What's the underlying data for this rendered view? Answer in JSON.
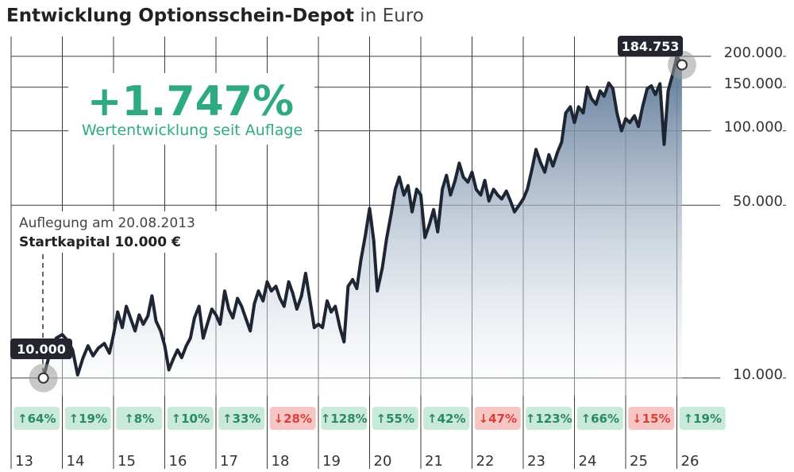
{
  "title": {
    "bold": "Entwicklung Optionsschein-Depot",
    "rest": " in Euro"
  },
  "colors": {
    "grid": "#3a3a3a",
    "line": "#1e2533",
    "area_top": "#5a7696",
    "area_bottom": "#ffffff",
    "green": "#2eab7e",
    "up_bg": "#c9e9da",
    "up_fg": "#2a8a63",
    "down_bg": "#f7c6c4",
    "down_fg": "#d9413c",
    "callout_bg": "#23262f"
  },
  "headline": {
    "value": "+1.747%",
    "label": "Wertentwicklung seit Auflage"
  },
  "launch": {
    "line1": "Auflegung am 20.08.2013",
    "line2": "Startkapital 10.000 €"
  },
  "callouts": {
    "start": "10.000",
    "end": "184.753"
  },
  "chart_data": {
    "type": "line",
    "scale": "log",
    "ylim": [
      9000,
      230000
    ],
    "x_range": [
      2013,
      2026.68
    ],
    "y_ticks": [
      {
        "value": 10000,
        "label": "10.000"
      },
      {
        "value": 50000,
        "label": "50.000"
      },
      {
        "value": 100000,
        "label": "100.000"
      },
      {
        "value": 150000,
        "label": "150.000"
      },
      {
        "value": 200000,
        "label": "200.000"
      }
    ],
    "x_ticks": [
      "13",
      "14",
      "15",
      "16",
      "17",
      "18",
      "19",
      "20",
      "21",
      "22",
      "23",
      "24",
      "25",
      "26"
    ],
    "yearly_returns": [
      {
        "year": "13",
        "value": "64",
        "dir": "up"
      },
      {
        "year": "14",
        "value": "19",
        "dir": "up"
      },
      {
        "year": "15",
        "value": "8",
        "dir": "up"
      },
      {
        "year": "16",
        "value": "10",
        "dir": "up"
      },
      {
        "year": "17",
        "value": "33",
        "dir": "up"
      },
      {
        "year": "18",
        "value": "28",
        "dir": "down"
      },
      {
        "year": "19",
        "value": "128",
        "dir": "up"
      },
      {
        "year": "20",
        "value": "55",
        "dir": "up"
      },
      {
        "year": "21",
        "value": "42",
        "dir": "up"
      },
      {
        "year": "22",
        "value": "47",
        "dir": "down"
      },
      {
        "year": "23",
        "value": "123",
        "dir": "up"
      },
      {
        "year": "24",
        "value": "66",
        "dir": "up"
      },
      {
        "year": "25",
        "value": "15",
        "dir": "down"
      },
      {
        "year": "26",
        "value": "19",
        "dir": "up"
      }
    ],
    "points": [
      [
        2013.63,
        10000
      ],
      [
        2013.75,
        12500
      ],
      [
        2013.88,
        14500
      ],
      [
        2014.0,
        15000
      ],
      [
        2014.1,
        14200
      ],
      [
        2014.2,
        13000
      ],
      [
        2014.3,
        10300
      ],
      [
        2014.4,
        12000
      ],
      [
        2014.5,
        13500
      ],
      [
        2014.6,
        12300
      ],
      [
        2014.7,
        13200
      ],
      [
        2014.82,
        13800
      ],
      [
        2014.92,
        12600
      ],
      [
        2015.0,
        15000
      ],
      [
        2015.08,
        18500
      ],
      [
        2015.17,
        16000
      ],
      [
        2015.25,
        19500
      ],
      [
        2015.33,
        17500
      ],
      [
        2015.42,
        15500
      ],
      [
        2015.5,
        18000
      ],
      [
        2015.58,
        16500
      ],
      [
        2015.67,
        17800
      ],
      [
        2015.75,
        21500
      ],
      [
        2015.83,
        17000
      ],
      [
        2015.92,
        15500
      ],
      [
        2016.0,
        13500
      ],
      [
        2016.08,
        10800
      ],
      [
        2016.17,
        12000
      ],
      [
        2016.25,
        13000
      ],
      [
        2016.33,
        12100
      ],
      [
        2016.42,
        13500
      ],
      [
        2016.5,
        14500
      ],
      [
        2016.58,
        17500
      ],
      [
        2016.67,
        19500
      ],
      [
        2016.75,
        14500
      ],
      [
        2016.83,
        16500
      ],
      [
        2016.92,
        19000
      ],
      [
        2017.0,
        18000
      ],
      [
        2017.08,
        16500
      ],
      [
        2017.17,
        22500
      ],
      [
        2017.25,
        19000
      ],
      [
        2017.33,
        17500
      ],
      [
        2017.42,
        21000
      ],
      [
        2017.5,
        19500
      ],
      [
        2017.58,
        17500
      ],
      [
        2017.67,
        15500
      ],
      [
        2017.75,
        20000
      ],
      [
        2017.83,
        22500
      ],
      [
        2017.92,
        20500
      ],
      [
        2018.0,
        24500
      ],
      [
        2018.08,
        22500
      ],
      [
        2018.17,
        23500
      ],
      [
        2018.25,
        21000
      ],
      [
        2018.33,
        19500
      ],
      [
        2018.42,
        24500
      ],
      [
        2018.5,
        22000
      ],
      [
        2018.58,
        19000
      ],
      [
        2018.67,
        21500
      ],
      [
        2018.75,
        26500
      ],
      [
        2018.83,
        21000
      ],
      [
        2018.92,
        16000
      ],
      [
        2019.0,
        16500
      ],
      [
        2019.08,
        16000
      ],
      [
        2019.17,
        20500
      ],
      [
        2019.25,
        18500
      ],
      [
        2019.33,
        19500
      ],
      [
        2019.42,
        16000
      ],
      [
        2019.5,
        14000
      ],
      [
        2019.58,
        23500
      ],
      [
        2019.67,
        25000
      ],
      [
        2019.75,
        23000
      ],
      [
        2019.83,
        30000
      ],
      [
        2019.92,
        38000
      ],
      [
        2020.0,
        48500
      ],
      [
        2020.08,
        36000
      ],
      [
        2020.15,
        22500
      ],
      [
        2020.25,
        28000
      ],
      [
        2020.33,
        36500
      ],
      [
        2020.42,
        46000
      ],
      [
        2020.5,
        58000
      ],
      [
        2020.58,
        65000
      ],
      [
        2020.67,
        55000
      ],
      [
        2020.75,
        60000
      ],
      [
        2020.83,
        47000
      ],
      [
        2020.92,
        58000
      ],
      [
        2021.0,
        55000
      ],
      [
        2021.08,
        37000
      ],
      [
        2021.17,
        42000
      ],
      [
        2021.25,
        48000
      ],
      [
        2021.33,
        39000
      ],
      [
        2021.42,
        58000
      ],
      [
        2021.5,
        66000
      ],
      [
        2021.58,
        55000
      ],
      [
        2021.67,
        63000
      ],
      [
        2021.75,
        74000
      ],
      [
        2021.83,
        65000
      ],
      [
        2021.92,
        62000
      ],
      [
        2022.0,
        68000
      ],
      [
        2022.08,
        58000
      ],
      [
        2022.17,
        55000
      ],
      [
        2022.25,
        63000
      ],
      [
        2022.33,
        52000
      ],
      [
        2022.42,
        58000
      ],
      [
        2022.5,
        55000
      ],
      [
        2022.58,
        53000
      ],
      [
        2022.67,
        57000
      ],
      [
        2022.75,
        52000
      ],
      [
        2022.83,
        47000
      ],
      [
        2022.92,
        50000
      ],
      [
        2023.0,
        53000
      ],
      [
        2023.08,
        58000
      ],
      [
        2023.17,
        70000
      ],
      [
        2023.25,
        84000
      ],
      [
        2023.33,
        75000
      ],
      [
        2023.42,
        68000
      ],
      [
        2023.5,
        80000
      ],
      [
        2023.58,
        72000
      ],
      [
        2023.67,
        82000
      ],
      [
        2023.75,
        90000
      ],
      [
        2023.83,
        118000
      ],
      [
        2023.92,
        125000
      ],
      [
        2024.0,
        108000
      ],
      [
        2024.08,
        125000
      ],
      [
        2024.17,
        118000
      ],
      [
        2024.25,
        150000
      ],
      [
        2024.33,
        135000
      ],
      [
        2024.42,
        128000
      ],
      [
        2024.5,
        145000
      ],
      [
        2024.58,
        138000
      ],
      [
        2024.67,
        156000
      ],
      [
        2024.75,
        148000
      ],
      [
        2024.83,
        118000
      ],
      [
        2024.92,
        100000
      ],
      [
        2025.0,
        112000
      ],
      [
        2025.08,
        108000
      ],
      [
        2025.17,
        115000
      ],
      [
        2025.25,
        104000
      ],
      [
        2025.33,
        125000
      ],
      [
        2025.42,
        148000
      ],
      [
        2025.5,
        152000
      ],
      [
        2025.58,
        140000
      ],
      [
        2025.67,
        155000
      ],
      [
        2025.75,
        88000
      ],
      [
        2025.83,
        145000
      ],
      [
        2025.92,
        170000
      ],
      [
        2026.0,
        200000
      ],
      [
        2026.08,
        188000
      ],
      [
        2026.1,
        184753
      ]
    ]
  }
}
